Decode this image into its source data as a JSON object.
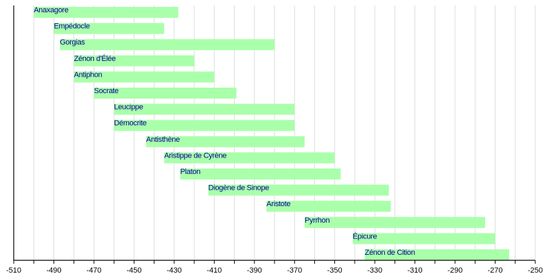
{
  "chart_data": {
    "type": "bar",
    "orientation": "horizontal-timeline",
    "title": "",
    "xlabel": "",
    "ylabel": "",
    "xlim": [
      -510,
      -250
    ],
    "grid": true,
    "minor_tick_step": 10,
    "xticks": [
      -510,
      -490,
      -470,
      -450,
      -430,
      -410,
      -390,
      -370,
      -350,
      -330,
      -310,
      -290,
      -270,
      -250
    ],
    "tick_labels": [
      "-510",
      "-490",
      "-470",
      "-450",
      "-430",
      "-410",
      "-390",
      "-370",
      "-350",
      "-330",
      "-310",
      "-290",
      "-270",
      "-250"
    ],
    "bar_color": "#aaffaa",
    "label_color": "#000099",
    "series": [
      {
        "name": "Anaxagore",
        "start": -500,
        "end": -428
      },
      {
        "name": "Empédocle",
        "start": -490,
        "end": -435
      },
      {
        "name": "Gorgias",
        "start": -487,
        "end": -380
      },
      {
        "name": "Zénon d'Élée",
        "start": -480,
        "end": -420
      },
      {
        "name": "Antiphon",
        "start": -480,
        "end": -410
      },
      {
        "name": "Socrate",
        "start": -470,
        "end": -399
      },
      {
        "name": "Leucippe",
        "start": -460,
        "end": -370
      },
      {
        "name": "Démocrite",
        "start": -460,
        "end": -370
      },
      {
        "name": "Antisthène",
        "start": -444,
        "end": -365
      },
      {
        "name": "Aristippe de Cyrène",
        "start": -435,
        "end": -350
      },
      {
        "name": "Platon",
        "start": -427,
        "end": -347
      },
      {
        "name": "Diogène de Sinope",
        "start": -413,
        "end": -323
      },
      {
        "name": "Aristote",
        "start": -384,
        "end": -322
      },
      {
        "name": "Pyrrhon",
        "start": -365,
        "end": -275
      },
      {
        "name": "Épicure",
        "start": -341,
        "end": -270
      },
      {
        "name": "Zénon de Cition",
        "start": -335,
        "end": -263
      }
    ]
  }
}
